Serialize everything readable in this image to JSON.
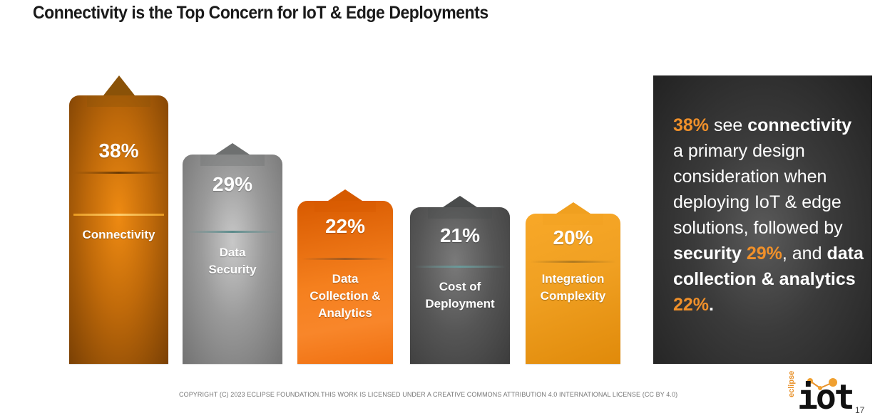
{
  "title": "Connectivity is the Top Concern for IoT & Edge Deployments",
  "chart_data": {
    "type": "bar",
    "title": "Connectivity is the Top Concern for IoT & Edge Deployments",
    "categories": [
      "Connectivity",
      "Data Security",
      "Data Collection & Analytics",
      "Cost of Deployment",
      "Integration Complexity"
    ],
    "values": [
      38,
      29,
      22,
      21,
      20
    ],
    "value_labels": [
      "38%",
      "29%",
      "22%",
      "21%",
      "20%"
    ],
    "label_lines": [
      [
        "Connectivity"
      ],
      [
        "Data",
        "Security"
      ],
      [
        "Data",
        "Collection &",
        "Analytics"
      ],
      [
        "Cost of",
        "Deployment"
      ],
      [
        "Integration",
        "Complexity"
      ]
    ],
    "colors": [
      "#b0600c",
      "#9a9a9a",
      "#f07818",
      "#555555",
      "#f0a020"
    ],
    "xlabel": "",
    "ylabel": "",
    "ylim": [
      0,
      38
    ],
    "grid": false,
    "legend": "none"
  },
  "callout": {
    "p1": "38%",
    "p2": " see ",
    "p3": "connectivity",
    "p4": " a primary design consideration when deploying IoT & edge solutions, followed by ",
    "p5": "security",
    "p6": " ",
    "p7": "29%",
    "p8": ", and ",
    "p9": "data collection & analytics",
    "p10": " ",
    "p11": "22%",
    "p12": ".",
    "highlight_color": "#f0902a"
  },
  "footer": "COPYRIGHT (C) 2023 ECLIPSE FOUNDATION.THIS WORK IS LICENSED UNDER A CREATIVE COMMONS ATTRIBUTION 4.0 INTERNATIONAL LICENSE (CC BY 4.0)",
  "logo": {
    "eclipse": "eclipse",
    "iot": "iot"
  },
  "page_number": "17"
}
